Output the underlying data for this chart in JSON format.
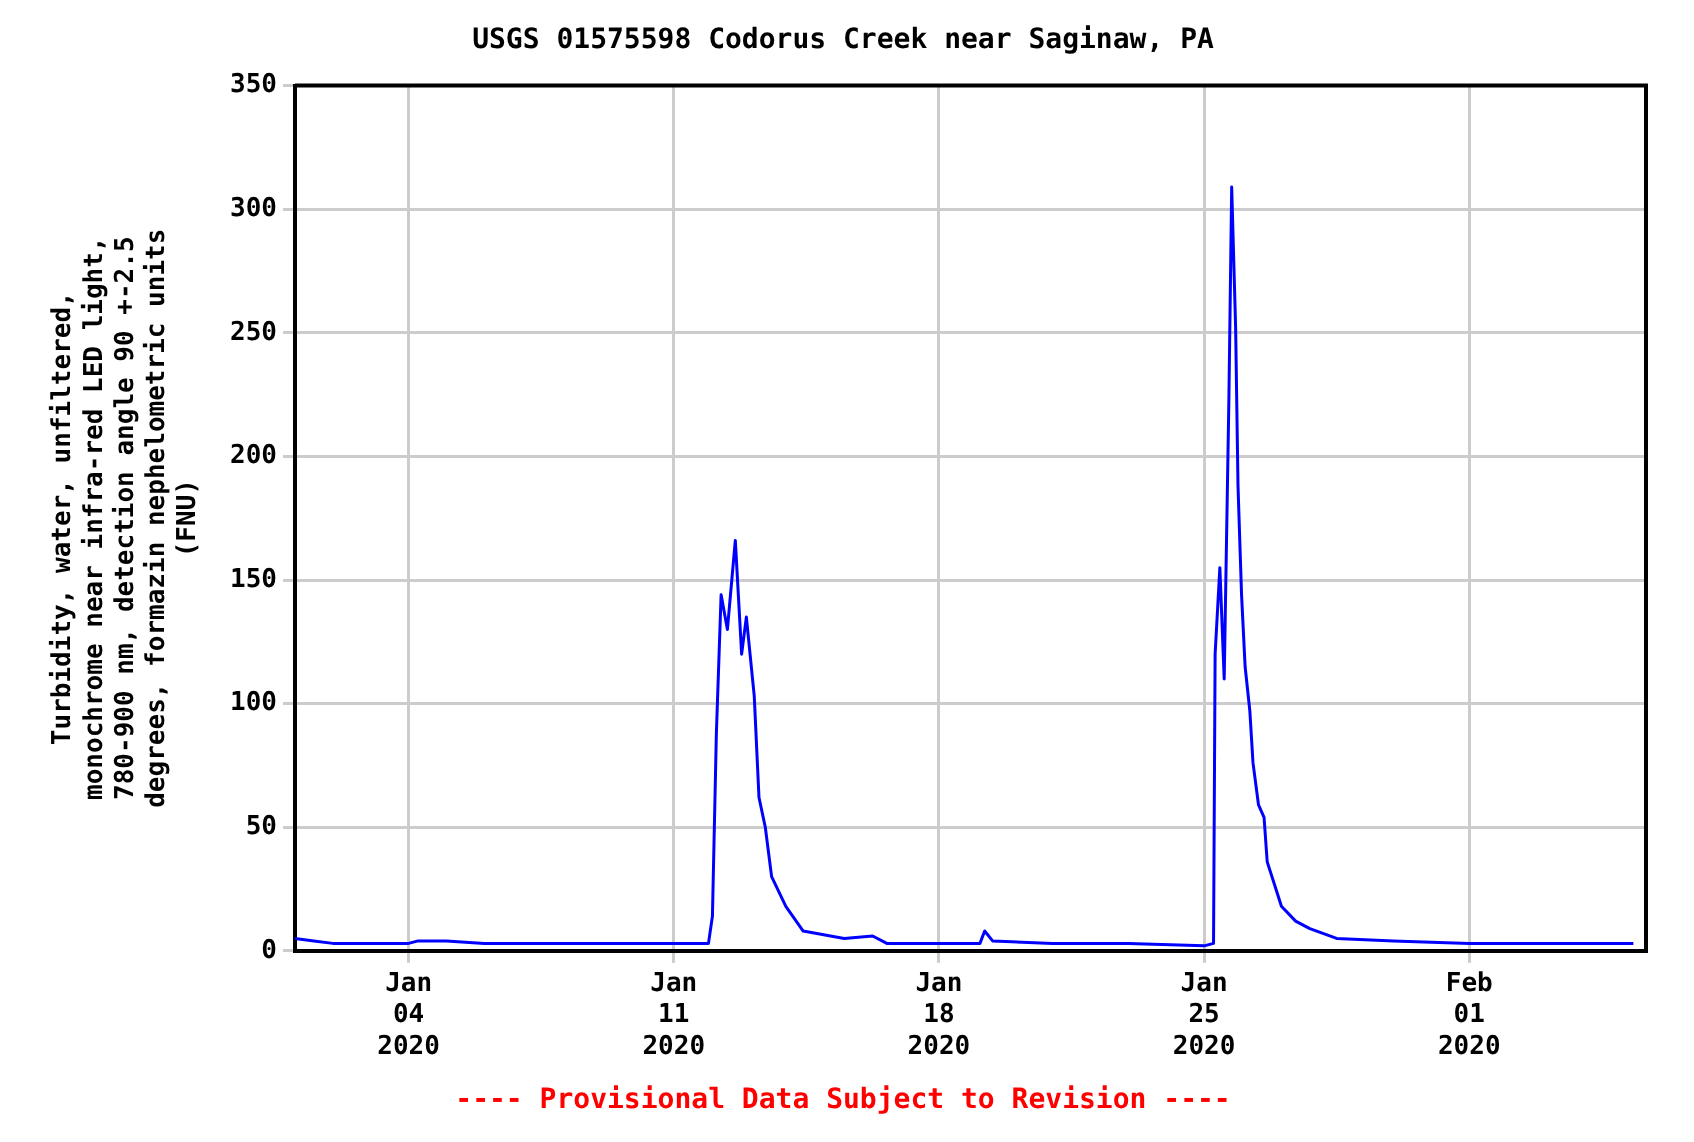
{
  "chart_data": {
    "type": "line",
    "title": "USGS 01575598 Codorus Creek near Saginaw, PA",
    "ylabel": "Turbidity, water, unfiltered, monochrome near infra-red LED light, 780-900 nm, detection angle 90 +-2.5 degrees, formazin nephelometric units (FNU)",
    "annotations": [
      "---- Provisional Data Subject to Revision ----"
    ],
    "x": [
      "2020-01-01T00:00",
      "2020-01-01T12:00",
      "2020-01-02T00:00",
      "2020-01-03T00:00",
      "2020-01-04T00:00",
      "2020-01-04T06:00",
      "2020-01-05T00:00",
      "2020-01-06T00:00",
      "2020-01-08T00:00",
      "2020-01-10T00:00",
      "2020-01-11T00:00",
      "2020-01-11T22:00",
      "2020-01-12T00:30",
      "2020-01-12T03:00",
      "2020-01-12T06:00",
      "2020-01-12T10:00",
      "2020-01-12T15:00",
      "2020-01-12T19:00",
      "2020-01-12T22:00",
      "2020-01-13T03:00",
      "2020-01-13T06:00",
      "2020-01-13T10:00",
      "2020-01-13T14:00",
      "2020-01-13T23:00",
      "2020-01-14T10:00",
      "2020-01-15T12:00",
      "2020-01-16T06:00",
      "2020-01-16T15:00",
      "2020-01-18T00:00",
      "2020-01-19T02:00",
      "2020-01-19T05:00",
      "2020-01-19T10:00",
      "2020-01-21T00:00",
      "2020-01-23T00:00",
      "2020-01-25T00:00",
      "2020-01-25T06:00",
      "2020-01-25T07:00",
      "2020-01-25T10:00",
      "2020-01-25T12:45",
      "2020-01-25T15:45",
      "2020-01-25T17:30",
      "2020-01-25T20:00",
      "2020-01-25T21:30",
      "2020-01-25T23:45",
      "2020-01-26T02:00",
      "2020-01-26T05:00",
      "2020-01-26T07:00",
      "2020-01-26T10:30",
      "2020-01-26T14:00",
      "2020-01-26T16:00",
      "2020-01-26T20:30",
      "2020-01-27T01:00",
      "2020-01-27T10:00",
      "2020-01-27T19:00",
      "2020-01-28T12:00",
      "2020-01-30T00:00",
      "2020-02-01T00:00",
      "2020-02-03T00:00",
      "2020-02-05T08:00"
    ],
    "series": [
      {
        "color": "#0000ff",
        "values": [
          5,
          4,
          3,
          3,
          3,
          4,
          4,
          3,
          3,
          3,
          3,
          3,
          14,
          88,
          144,
          130,
          166,
          120,
          135,
          103,
          62,
          50,
          30,
          18,
          8,
          5,
          6,
          3,
          3,
          3,
          8,
          4,
          3,
          3,
          2,
          3,
          120,
          155,
          110,
          224,
          309,
          252,
          188,
          144,
          115,
          97,
          76,
          59,
          54,
          36,
          27,
          18,
          12,
          9,
          5,
          4,
          3,
          3,
          3
        ]
      }
    ],
    "xlim": [
      "2020-01-01T00:00",
      "2020-02-05T16:00"
    ],
    "xticks": [
      {
        "value": "2020-01-04",
        "label": "Jan 04 2020"
      },
      {
        "value": "2020-01-11",
        "label": "Jan 11 2020"
      },
      {
        "value": "2020-01-18",
        "label": "Jan 18 2020"
      },
      {
        "value": "2020-01-25",
        "label": "Jan 25 2020"
      },
      {
        "value": "2020-02-01",
        "label": "Feb 01 2020"
      }
    ],
    "ylim": [
      0,
      350
    ],
    "yticks": [
      0,
      50,
      100,
      150,
      200,
      250,
      300,
      350
    ],
    "grid": true,
    "legend": false,
    "marker": "none",
    "line_style": "solid"
  }
}
